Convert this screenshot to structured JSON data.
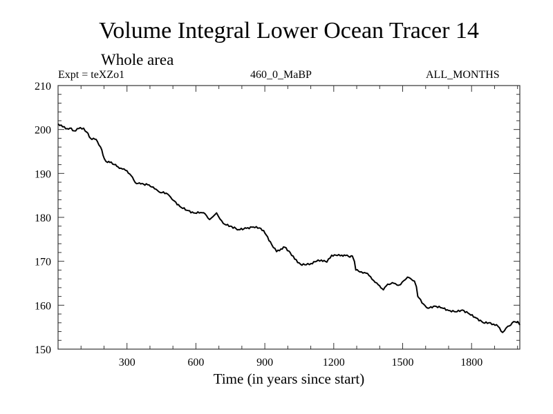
{
  "header": {
    "title": "Volume Integral Lower Ocean Tracer 14",
    "subtitle": "Whole area",
    "expt_label": "Expt = teXZo1",
    "period_label": "460_0_MaBP",
    "months_label": "ALL_MONTHS"
  },
  "chart_data": {
    "type": "line",
    "title": "Volume Integral Lower Ocean Tracer 14",
    "subtitle": "Whole area",
    "xlabel": "Time (in years since start)",
    "ylabel": "",
    "xlim": [
      0,
      2010
    ],
    "ylim": [
      150,
      210
    ],
    "xticks": [
      300,
      600,
      900,
      1200,
      1500,
      1800
    ],
    "xtick_labels": [
      "300",
      "600",
      "900",
      "1200",
      "1500",
      "1800"
    ],
    "xminor_step": 100,
    "yticks": [
      150,
      160,
      170,
      180,
      190,
      200,
      210
    ],
    "ytick_labels": [
      "150",
      "160",
      "170",
      "180",
      "190",
      "200",
      "210"
    ],
    "yminor_step": 2,
    "grid": false,
    "line_color": "#000000",
    "series": [
      {
        "name": "Tracer 14",
        "x": [
          0,
          20,
          40,
          51,
          70,
          90,
          111,
          125,
          141,
          160,
          171,
          185,
          201,
          215,
          231,
          245,
          261,
          280,
          300,
          318,
          336,
          360,
          396,
          420,
          440,
          471,
          490,
          501,
          530,
          561,
          590,
          621,
          640,
          660,
          675,
          690,
          705,
          726,
          750,
          786,
          820,
          850,
          876,
          895,
          906,
          930,
          951,
          970,
          987,
          1010,
          1030,
          1056,
          1080,
          1101,
          1125,
          1146,
          1170,
          1191,
          1215,
          1235,
          1251,
          1265,
          1281,
          1290,
          1296,
          1320,
          1341,
          1360,
          1380,
          1400,
          1416,
          1435,
          1461,
          1475,
          1491,
          1505,
          1521,
          1540,
          1551,
          1560,
          1566,
          1590,
          1611,
          1640,
          1671,
          1700,
          1731,
          1760,
          1791,
          1820,
          1851,
          1875,
          1896,
          1915,
          1935,
          1950,
          1965,
          1977,
          1990,
          2001,
          2010
        ],
        "y": [
          201.3,
          200.6,
          200.2,
          200.3,
          199.7,
          200.2,
          200.3,
          199.4,
          198.0,
          197.8,
          197.3,
          196.0,
          193.4,
          192.5,
          192.6,
          192.0,
          191.5,
          191.0,
          190.6,
          189.5,
          187.9,
          187.6,
          187.4,
          186.5,
          185.8,
          185.5,
          184.6,
          183.9,
          182.5,
          181.6,
          181.0,
          181.1,
          180.8,
          179.5,
          180.2,
          181.0,
          179.6,
          178.4,
          178.0,
          177.2,
          177.5,
          177.8,
          177.6,
          177.0,
          176.0,
          173.8,
          172.2,
          172.8,
          173.2,
          172.0,
          170.5,
          169.3,
          169.2,
          169.5,
          170.0,
          170.3,
          169.8,
          171.4,
          171.3,
          171.4,
          171.3,
          171.1,
          171.2,
          170.0,
          168.0,
          167.6,
          167.3,
          166.5,
          165.2,
          164.4,
          163.5,
          164.8,
          165.0,
          164.6,
          164.7,
          165.6,
          166.4,
          165.8,
          165.5,
          164.2,
          162.0,
          160.3,
          159.3,
          159.8,
          159.4,
          158.8,
          158.5,
          158.9,
          158.0,
          157.1,
          156.0,
          156.0,
          155.7,
          155.2,
          153.8,
          154.8,
          155.3,
          156.0,
          156.2,
          156.3,
          155.5
        ]
      }
    ]
  }
}
